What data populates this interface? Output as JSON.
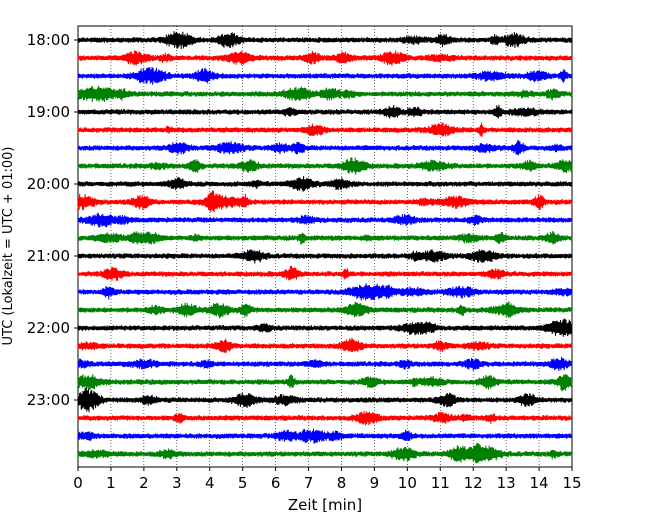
{
  "chart_data": {
    "type": "line",
    "title": "",
    "xlabel": "Zeit  [min]",
    "ylabel": "UTC (Lokalzeit = UTC + 01:00)",
    "xlim": [
      0,
      15
    ],
    "x_ticks": [
      "0",
      "1",
      "2",
      "3",
      "4",
      "5",
      "6",
      "7",
      "8",
      "9",
      "10",
      "11",
      "12",
      "13",
      "14",
      "15"
    ],
    "x_grid": "dotted vertical lines at each minute",
    "y_ticks": [
      "18:00",
      "19:00",
      "20:00",
      "21:00",
      "22:00",
      "23:00"
    ],
    "trace_interval_min": 15,
    "trace_start_times": [
      "18:00",
      "18:15",
      "18:30",
      "18:45",
      "19:00",
      "19:15",
      "19:30",
      "19:45",
      "20:00",
      "20:15",
      "20:30",
      "20:45",
      "21:00",
      "21:15",
      "21:30",
      "21:45",
      "22:00",
      "22:15",
      "22:30",
      "22:45",
      "23:00",
      "23:15",
      "23:30",
      "23:45"
    ],
    "trace_colors": [
      "#000000",
      "#ff0000",
      "#0000ff",
      "#008000"
    ],
    "series_description": "24 seismogram traces (helicorder), one per 15 minutes, colors cycling black, red, blue, green"
  }
}
